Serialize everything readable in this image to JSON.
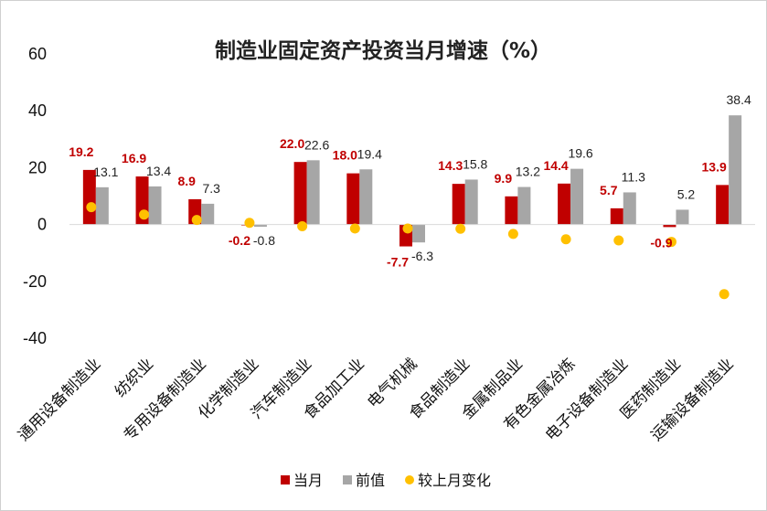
{
  "chart_data": {
    "type": "bar",
    "title": "制造业固定资产投资当月增速（%）",
    "categories": [
      "通用设备制造业",
      "纺织业",
      "专用设备制造业",
      "化学制造业",
      "汽车制造业",
      "食品加工业",
      "电气机械",
      "食品制造业",
      "金属制品业",
      "有色金属冶炼",
      "电子设备制造业",
      "医药制造业",
      "运输设备制造业"
    ],
    "ylim": [
      -40,
      60
    ],
    "yticks": [
      "60",
      "40",
      "20",
      "0",
      "-20",
      "-40"
    ],
    "ytick_values": [
      60,
      40,
      20,
      0,
      -20,
      -40
    ],
    "grid": false,
    "legend_position": "bottom",
    "series": [
      {
        "name": "当月",
        "kind": "bar",
        "color": "#c00000",
        "values": [
          19.2,
          16.9,
          8.9,
          -0.2,
          22.0,
          18.0,
          -7.7,
          14.3,
          9.9,
          14.4,
          5.7,
          -0.9,
          13.9
        ],
        "labels": [
          "19.2",
          "16.9",
          "8.9",
          "-0.2",
          "22.0",
          "18.0",
          "-7.7",
          "14.3",
          "9.9",
          "14.4",
          "5.7",
          "-0.9",
          "13.9"
        ]
      },
      {
        "name": "前值",
        "kind": "bar",
        "color": "#a6a6a6",
        "values": [
          13.1,
          13.4,
          7.3,
          -0.8,
          22.6,
          19.4,
          -6.3,
          15.8,
          13.2,
          19.6,
          11.3,
          5.2,
          38.4
        ],
        "labels": [
          "13.1",
          "13.4",
          "7.3",
          "-0.8",
          "22.6",
          "19.4",
          "-6.3",
          "15.8",
          "13.2",
          "19.6",
          "11.3",
          "5.2",
          "38.4"
        ]
      },
      {
        "name": "较上月变化",
        "kind": "dot",
        "color": "#ffc000",
        "values": [
          6.1,
          3.5,
          1.6,
          0.6,
          -0.6,
          -1.4,
          -1.4,
          -1.5,
          -3.3,
          -5.2,
          -5.6,
          -6.1,
          -24.5
        ]
      }
    ]
  }
}
